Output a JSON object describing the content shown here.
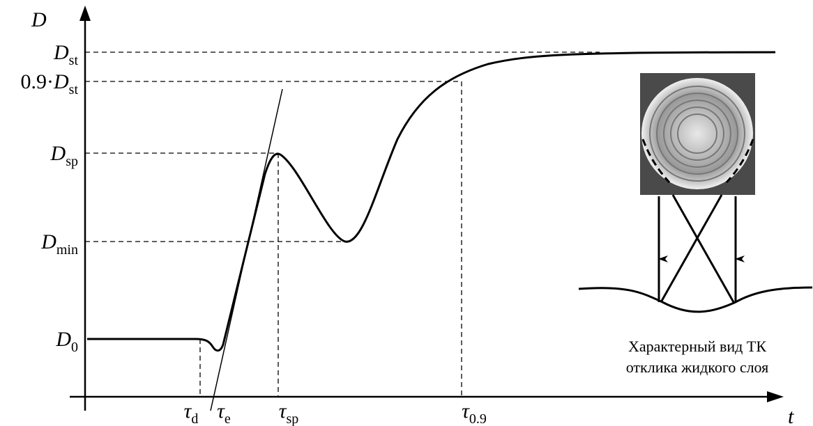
{
  "axes": {
    "y": "D",
    "x": "t"
  },
  "y_labels": [
    {
      "prefix": "",
      "main": "D",
      "sub": "st"
    },
    {
      "prefix": "0.9·",
      "main": "D",
      "sub": "st"
    },
    {
      "prefix": "",
      "main": "D",
      "sub": "sp"
    },
    {
      "prefix": "",
      "main": "D",
      "sub": "min"
    },
    {
      "prefix": "",
      "main": "D",
      "sub": "0"
    }
  ],
  "x_labels": [
    {
      "main": "τ",
      "sub": "d"
    },
    {
      "main": "τ",
      "sub": "e"
    },
    {
      "main": "τ",
      "sub": "sp"
    },
    {
      "main": "τ",
      "sub": "0.9"
    }
  ],
  "caption": [
    "Характерный вид ТК",
    "отклика жидкого слоя"
  ]
}
